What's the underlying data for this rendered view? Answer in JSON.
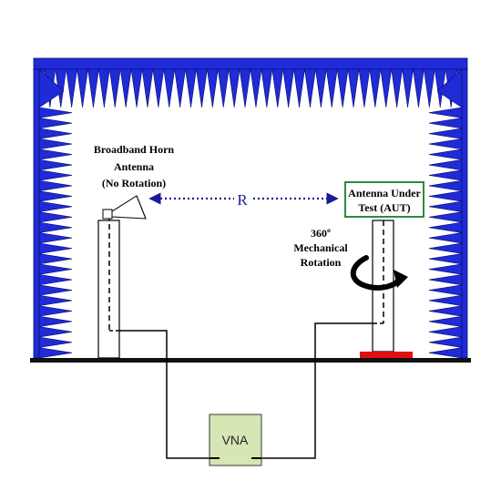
{
  "horn_label": {
    "line1": "Broadband Horn",
    "line2": "Antenna",
    "line3": "(No Rotation)"
  },
  "distance_label": "R",
  "aut_label": {
    "line1": "Antenna Under",
    "line2": "Test (AUT)"
  },
  "rotation_label": {
    "line1": "360º",
    "line2": "Mechanical",
    "line3": "Rotation"
  },
  "vna_label": "VNA",
  "colors": {
    "absorber": "#1e2bd6",
    "absorber_edge": "#0a0a6e",
    "aut_box_border": "#2e8b3e",
    "vna_fill": "#d6e6b4",
    "vna_border": "#555555",
    "aut_mount": "#e01010",
    "distance_arrow": "#1a1a9e"
  }
}
